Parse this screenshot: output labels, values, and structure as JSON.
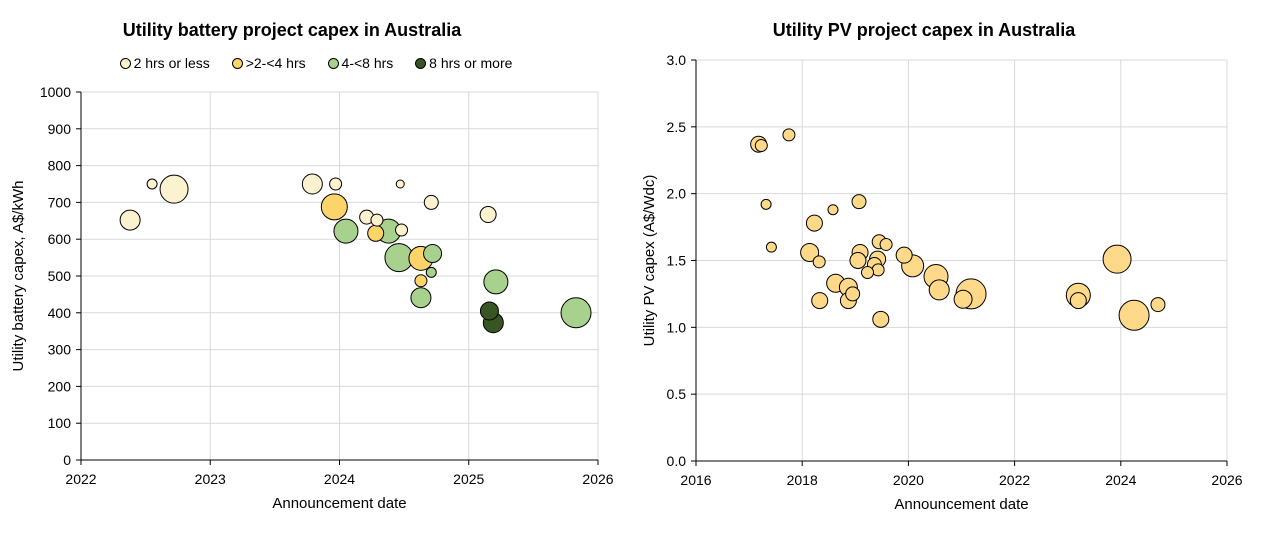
{
  "colors": {
    "2 hrs or less": "#fdf2d0",
    ">2-<4 hrs": "#fdd46a",
    "4-<8 hrs": "#a9d18e",
    "8 hrs or more": "#375623",
    "pv": "#ffd98a"
  },
  "chart_data": [
    {
      "type": "scatter",
      "title": "Utility battery project capex in Australia",
      "xlabel": "Announcement date",
      "ylabel": "Utility battery capex, A$/kWh",
      "xlim": [
        2022,
        2026
      ],
      "ylim": [
        0,
        1000
      ],
      "xticks": [
        "2022",
        "2023",
        "2024",
        "2025",
        "2026"
      ],
      "yticks": [
        "0",
        "100",
        "200",
        "300",
        "400",
        "500",
        "600",
        "700",
        "800",
        "900",
        "1000"
      ],
      "grid": true,
      "legend_position": "top",
      "series": [
        {
          "name": "2 hrs or less",
          "points": [
            {
              "x": 2022.38,
              "y": 652,
              "size": 10
            },
            {
              "x": 2022.55,
              "y": 750,
              "size": 5
            },
            {
              "x": 2022.72,
              "y": 736,
              "size": 14
            },
            {
              "x": 2023.79,
              "y": 750,
              "size": 10
            },
            {
              "x": 2023.97,
              "y": 750,
              "size": 6
            },
            {
              "x": 2024.21,
              "y": 660,
              "size": 7
            },
            {
              "x": 2024.29,
              "y": 652,
              "size": 6
            },
            {
              "x": 2024.47,
              "y": 750,
              "size": 4
            },
            {
              "x": 2024.48,
              "y": 625,
              "size": 6
            },
            {
              "x": 2024.71,
              "y": 700,
              "size": 7
            },
            {
              "x": 2025.15,
              "y": 667,
              "size": 8
            }
          ]
        },
        {
          "name": ">2-<4 hrs",
          "points": [
            {
              "x": 2023.96,
              "y": 688,
              "size": 13
            },
            {
              "x": 2024.28,
              "y": 616,
              "size": 8
            },
            {
              "x": 2024.63,
              "y": 548,
              "size": 12
            },
            {
              "x": 2024.63,
              "y": 487,
              "size": 6
            }
          ]
        },
        {
          "name": "4-<8 hrs",
          "points": [
            {
              "x": 2024.05,
              "y": 622,
              "size": 12
            },
            {
              "x": 2024.38,
              "y": 622,
              "size": 12
            },
            {
              "x": 2024.46,
              "y": 550,
              "size": 14
            },
            {
              "x": 2024.63,
              "y": 441,
              "size": 10
            },
            {
              "x": 2024.71,
              "y": 510,
              "size": 5
            },
            {
              "x": 2024.72,
              "y": 561,
              "size": 9
            },
            {
              "x": 2025.21,
              "y": 484,
              "size": 12
            },
            {
              "x": 2025.83,
              "y": 400,
              "size": 15
            }
          ]
        },
        {
          "name": "8 hrs or more",
          "points": [
            {
              "x": 2025.16,
              "y": 405,
              "size": 9
            },
            {
              "x": 2025.19,
              "y": 373,
              "size": 10
            }
          ]
        }
      ]
    },
    {
      "type": "scatter",
      "title": "Utility PV project capex in Australia",
      "xlabel": "Announcement date",
      "ylabel": "Utility PV capex (A$/Wdc)",
      "xlim": [
        2016,
        2026
      ],
      "ylim": [
        0,
        3
      ],
      "xticks": [
        "2016",
        "2018",
        "2020",
        "2022",
        "2024",
        "2026"
      ],
      "yticks": [
        "0.0",
        "0.5",
        "1.0",
        "1.5",
        "2.0",
        "2.5",
        "3.0"
      ],
      "grid": true,
      "series": [
        {
          "points": [
            {
              "x": 2017.18,
              "y": 2.37,
              "size": 8
            },
            {
              "x": 2017.23,
              "y": 2.36,
              "size": 6
            },
            {
              "x": 2017.75,
              "y": 2.44,
              "size": 6
            },
            {
              "x": 2017.32,
              "y": 1.92,
              "size": 5
            },
            {
              "x": 2017.42,
              "y": 1.6,
              "size": 5
            },
            {
              "x": 2018.23,
              "y": 1.78,
              "size": 8
            },
            {
              "x": 2018.58,
              "y": 1.88,
              "size": 5
            },
            {
              "x": 2019.07,
              "y": 1.94,
              "size": 7
            },
            {
              "x": 2018.14,
              "y": 1.56,
              "size": 9
            },
            {
              "x": 2018.32,
              "y": 1.49,
              "size": 6
            },
            {
              "x": 2019.09,
              "y": 1.56,
              "size": 8
            },
            {
              "x": 2019.05,
              "y": 1.5,
              "size": 8
            },
            {
              "x": 2019.45,
              "y": 1.64,
              "size": 7
            },
            {
              "x": 2019.58,
              "y": 1.62,
              "size": 6
            },
            {
              "x": 2019.42,
              "y": 1.51,
              "size": 8
            },
            {
              "x": 2019.36,
              "y": 1.47,
              "size": 7
            },
            {
              "x": 2019.43,
              "y": 1.43,
              "size": 6
            },
            {
              "x": 2019.23,
              "y": 1.41,
              "size": 6
            },
            {
              "x": 2019.92,
              "y": 1.54,
              "size": 8
            },
            {
              "x": 2020.08,
              "y": 1.46,
              "size": 11
            },
            {
              "x": 2018.63,
              "y": 1.33,
              "size": 9
            },
            {
              "x": 2018.87,
              "y": 1.3,
              "size": 9
            },
            {
              "x": 2018.95,
              "y": 1.25,
              "size": 7
            },
            {
              "x": 2018.87,
              "y": 1.2,
              "size": 8
            },
            {
              "x": 2018.33,
              "y": 1.2,
              "size": 8
            },
            {
              "x": 2019.48,
              "y": 1.06,
              "size": 8
            },
            {
              "x": 2020.58,
              "y": 1.28,
              "size": 10
            },
            {
              "x": 2020.52,
              "y": 1.38,
              "size": 12
            },
            {
              "x": 2021.03,
              "y": 1.21,
              "size": 9
            },
            {
              "x": 2021.18,
              "y": 1.25,
              "size": 15
            },
            {
              "x": 2023.2,
              "y": 1.2,
              "size": 8
            },
            {
              "x": 2023.2,
              "y": 1.24,
              "size": 12
            },
            {
              "x": 2023.93,
              "y": 1.51,
              "size": 14
            },
            {
              "x": 2024.25,
              "y": 1.09,
              "size": 15
            },
            {
              "x": 2024.7,
              "y": 1.17,
              "size": 7
            }
          ]
        }
      ]
    }
  ]
}
